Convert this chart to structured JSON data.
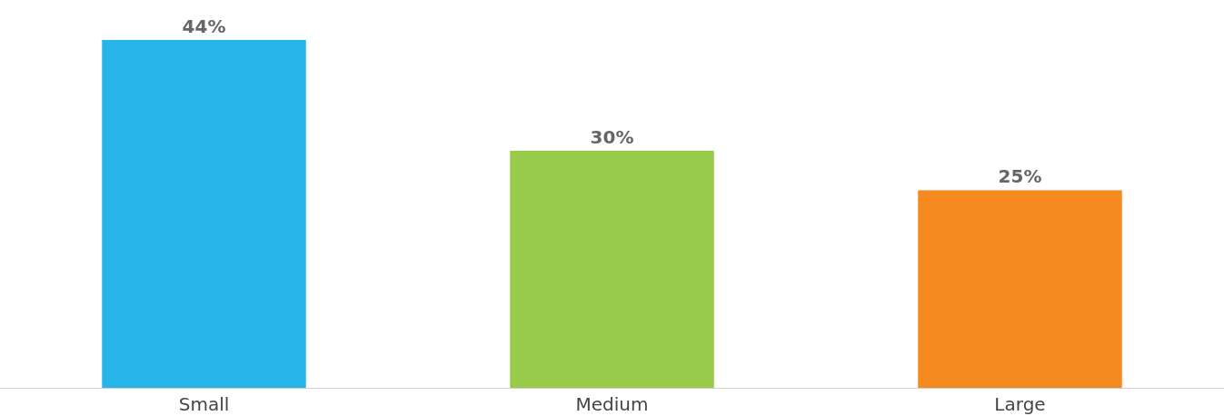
{
  "chart_data": {
    "type": "bar",
    "categories": [
      "Small",
      "Medium",
      "Large"
    ],
    "values": [
      44,
      30,
      25
    ],
    "colors": [
      "#27b4e8",
      "#98cb4a",
      "#f58a21"
    ],
    "value_labels": [
      "44%",
      "30%",
      "25%"
    ]
  }
}
